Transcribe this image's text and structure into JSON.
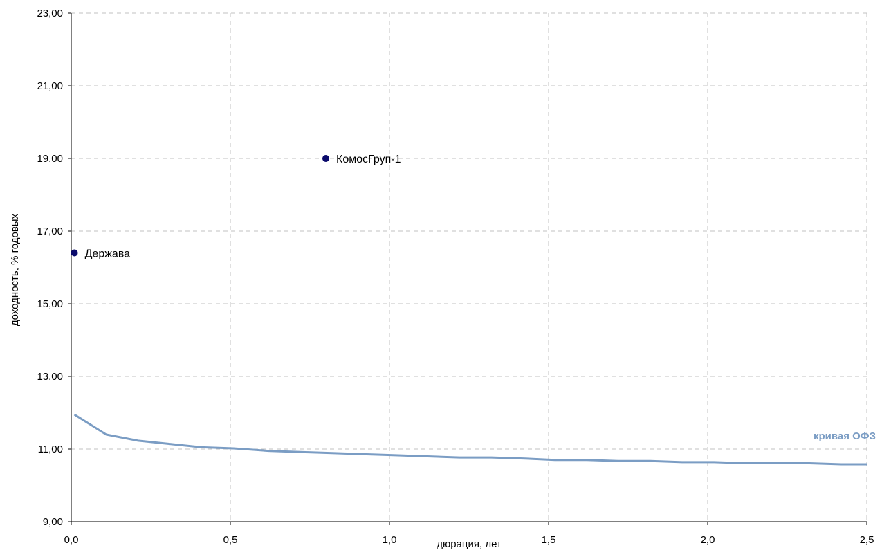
{
  "chart_data": {
    "type": "scatter",
    "xlabel": "дюрация, лет",
    "ylabel": "доходность, % годовых",
    "xlim": [
      0,
      2.5
    ],
    "ylim": [
      9,
      23
    ],
    "x_ticks": [
      {
        "value": 0,
        "label": "0,0"
      },
      {
        "value": 0.5,
        "label": "0,5"
      },
      {
        "value": 1.0,
        "label": "1,0"
      },
      {
        "value": 1.5,
        "label": "1,5"
      },
      {
        "value": 2.0,
        "label": "2,0"
      },
      {
        "value": 2.5,
        "label": "2,5"
      }
    ],
    "y_ticks": [
      {
        "value": 9,
        "label": "9,00"
      },
      {
        "value": 11,
        "label": "11,00"
      },
      {
        "value": 13,
        "label": "13,00"
      },
      {
        "value": 15,
        "label": "15,00"
      },
      {
        "value": 17,
        "label": "17,00"
      },
      {
        "value": 19,
        "label": "19,00"
      },
      {
        "value": 21,
        "label": "21,00"
      },
      {
        "value": 23,
        "label": "23,00"
      }
    ],
    "grid": true,
    "points": [
      {
        "label": "Держава",
        "x": 0.01,
        "y": 16.4
      },
      {
        "label": "КомосГруп-1",
        "x": 0.8,
        "y": 19.0
      }
    ],
    "curve": {
      "name": "кривая ОФЗ",
      "x": [
        0.01,
        0.11,
        0.21,
        0.31,
        0.41,
        0.51,
        0.62,
        0.72,
        0.82,
        0.92,
        1.02,
        1.12,
        1.22,
        1.32,
        1.42,
        1.52,
        1.62,
        1.72,
        1.82,
        1.92,
        2.02,
        2.12,
        2.22,
        2.32,
        2.42,
        2.5
      ],
      "y": [
        11.95,
        11.4,
        11.23,
        11.14,
        11.05,
        11.02,
        10.95,
        10.92,
        10.89,
        10.86,
        10.83,
        10.8,
        10.77,
        10.77,
        10.74,
        10.7,
        10.7,
        10.67,
        10.67,
        10.64,
        10.64,
        10.61,
        10.61,
        10.61,
        10.58,
        10.58
      ]
    },
    "colors": {
      "points": "#0a0a6b",
      "curve": "#7b9dc4",
      "grid": "#c0c0c0",
      "axis": "#000000"
    }
  }
}
